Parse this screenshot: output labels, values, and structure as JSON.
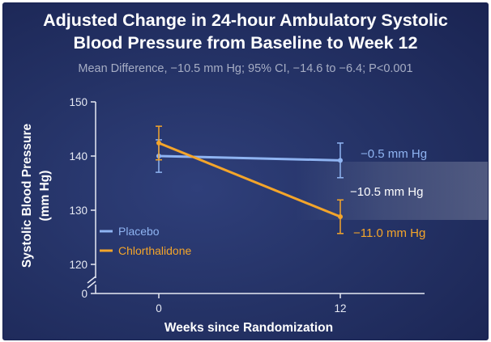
{
  "chart_data": {
    "type": "line",
    "title": "Adjusted Change in 24-hour Ambulatory Systolic",
    "title_line2": "Blood Pressure from Baseline to Week 12",
    "subtitle": "Mean Difference, −10.5 mm Hg; 95% CI, −14.6 to −6.4; P<0.001",
    "xlabel": "Weeks since Randomization",
    "ylabel_line1": "Systolic Blood Pressure",
    "ylabel_line2": "(mm Hg)",
    "x_ticks": [
      "0",
      "12"
    ],
    "y_ticks": [
      "120",
      "130",
      "140",
      "150"
    ],
    "y_zero_label": "0",
    "ylim": [
      120,
      150
    ],
    "axis_break": true,
    "legend_position": "left-middle",
    "series": [
      {
        "name": "Placebo",
        "color": "#8fb4f2",
        "x": [
          0,
          12
        ],
        "y": [
          140.0,
          139.2
        ],
        "err_low": [
          137.0,
          136.0
        ],
        "err_high": [
          143.0,
          142.4
        ],
        "end_label": "−0.5 mm Hg"
      },
      {
        "name": "Chlorthalidone",
        "color": "#f4a52a",
        "x": [
          0,
          12
        ],
        "y": [
          142.4,
          128.8
        ],
        "err_low": [
          139.3,
          125.7
        ],
        "err_high": [
          145.5,
          131.9
        ],
        "end_label": "−11.0 mm Hg"
      }
    ],
    "difference_label": "−10.5 mm Hg"
  }
}
